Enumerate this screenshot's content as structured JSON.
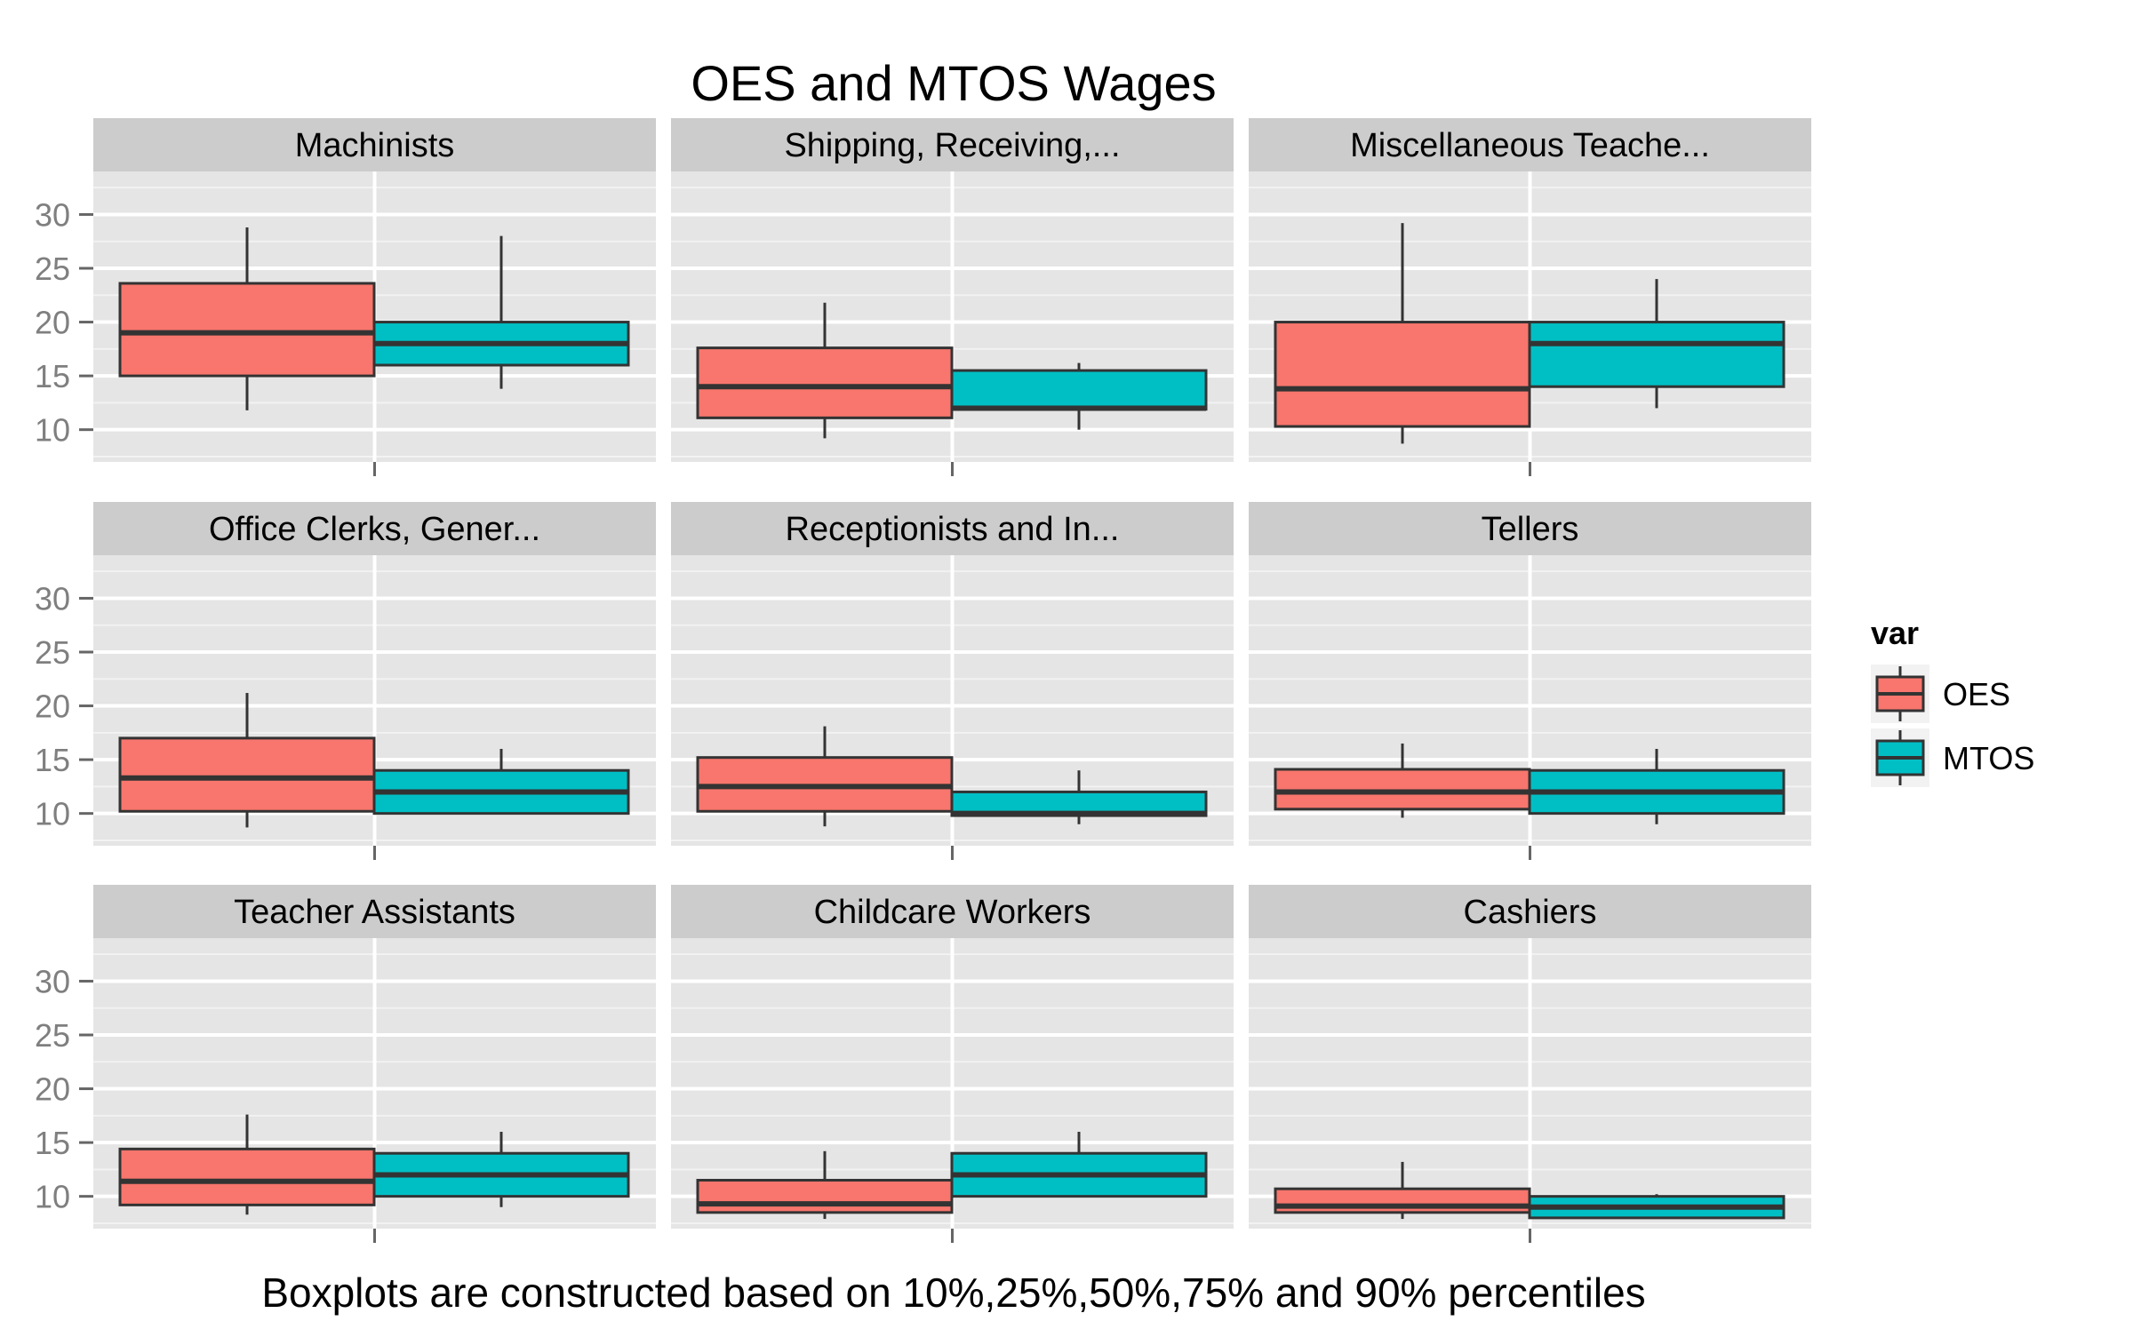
{
  "chart_data": {
    "type": "boxplot",
    "title": "OES and MTOS Wages",
    "caption": "Boxplots are constructed based on 10%,25%,50%,75% and 90% percentiles",
    "ylim": [
      7,
      34
    ],
    "y_ticks": [
      10,
      15,
      20,
      25,
      30
    ],
    "grid": true,
    "layout": "3x3 facets",
    "legend": {
      "title": "var",
      "position": "right",
      "entries": [
        {
          "name": "OES",
          "color": "#F8766D"
        },
        {
          "name": "MTOS",
          "color": "#00BFC4"
        }
      ]
    },
    "stats_order": [
      "p10",
      "p25",
      "p50",
      "p75",
      "p90"
    ],
    "panels": [
      {
        "label": "Machinists",
        "series": [
          {
            "name": "OES",
            "p10": 11.8,
            "p25": 15.0,
            "p50": 19.0,
            "p75": 23.6,
            "p90": 28.8
          },
          {
            "name": "MTOS",
            "p10": 13.8,
            "p25": 16.0,
            "p50": 18.0,
            "p75": 20.0,
            "p90": 28.0
          }
        ]
      },
      {
        "label": "Shipping, Receiving,...",
        "series": [
          {
            "name": "OES",
            "p10": 9.2,
            "p25": 11.1,
            "p50": 14.0,
            "p75": 17.6,
            "p90": 21.8
          },
          {
            "name": "MTOS",
            "p10": 10.0,
            "p25": 11.9,
            "p50": 12.0,
            "p75": 15.5,
            "p90": 16.2
          }
        ]
      },
      {
        "label": "Miscellaneous Teache...",
        "series": [
          {
            "name": "OES",
            "p10": 8.7,
            "p25": 10.3,
            "p50": 13.8,
            "p75": 20.0,
            "p90": 29.2
          },
          {
            "name": "MTOS",
            "p10": 12.0,
            "p25": 14.0,
            "p50": 18.0,
            "p75": 20.0,
            "p90": 24.0
          }
        ]
      },
      {
        "label": "Office Clerks, Gener...",
        "series": [
          {
            "name": "OES",
            "p10": 8.7,
            "p25": 10.2,
            "p50": 13.3,
            "p75": 17.0,
            "p90": 21.2
          },
          {
            "name": "MTOS",
            "p10": 10.0,
            "p25": 10.0,
            "p50": 12.0,
            "p75": 14.0,
            "p90": 16.0
          }
        ]
      },
      {
        "label": "Receptionists and In...",
        "series": [
          {
            "name": "OES",
            "p10": 8.8,
            "p25": 10.2,
            "p50": 12.5,
            "p75": 15.2,
            "p90": 18.1
          },
          {
            "name": "MTOS",
            "p10": 9.0,
            "p25": 9.8,
            "p50": 10.0,
            "p75": 12.0,
            "p90": 14.0
          }
        ]
      },
      {
        "label": "Tellers",
        "series": [
          {
            "name": "OES",
            "p10": 9.6,
            "p25": 10.4,
            "p50": 12.0,
            "p75": 14.1,
            "p90": 16.5
          },
          {
            "name": "MTOS",
            "p10": 9.0,
            "p25": 10.0,
            "p50": 12.0,
            "p75": 14.0,
            "p90": 16.0
          }
        ]
      },
      {
        "label": "Teacher Assistants",
        "series": [
          {
            "name": "OES",
            "p10": 8.3,
            "p25": 9.2,
            "p50": 11.4,
            "p75": 14.4,
            "p90": 17.6
          },
          {
            "name": "MTOS",
            "p10": 9.0,
            "p25": 10.0,
            "p50": 12.0,
            "p75": 14.0,
            "p90": 16.0
          }
        ]
      },
      {
        "label": "Childcare Workers",
        "series": [
          {
            "name": "OES",
            "p10": 7.9,
            "p25": 8.5,
            "p50": 9.3,
            "p75": 11.5,
            "p90": 14.2
          },
          {
            "name": "MTOS",
            "p10": 10.0,
            "p25": 10.0,
            "p50": 12.0,
            "p75": 14.0,
            "p90": 16.0
          }
        ]
      },
      {
        "label": "Cashiers",
        "series": [
          {
            "name": "OES",
            "p10": 7.9,
            "p25": 8.5,
            "p50": 9.1,
            "p75": 10.7,
            "p90": 13.2
          },
          {
            "name": "MTOS",
            "p10": 8.0,
            "p25": 8.0,
            "p50": 9.0,
            "p75": 10.0,
            "p90": 10.2
          }
        ]
      }
    ]
  }
}
